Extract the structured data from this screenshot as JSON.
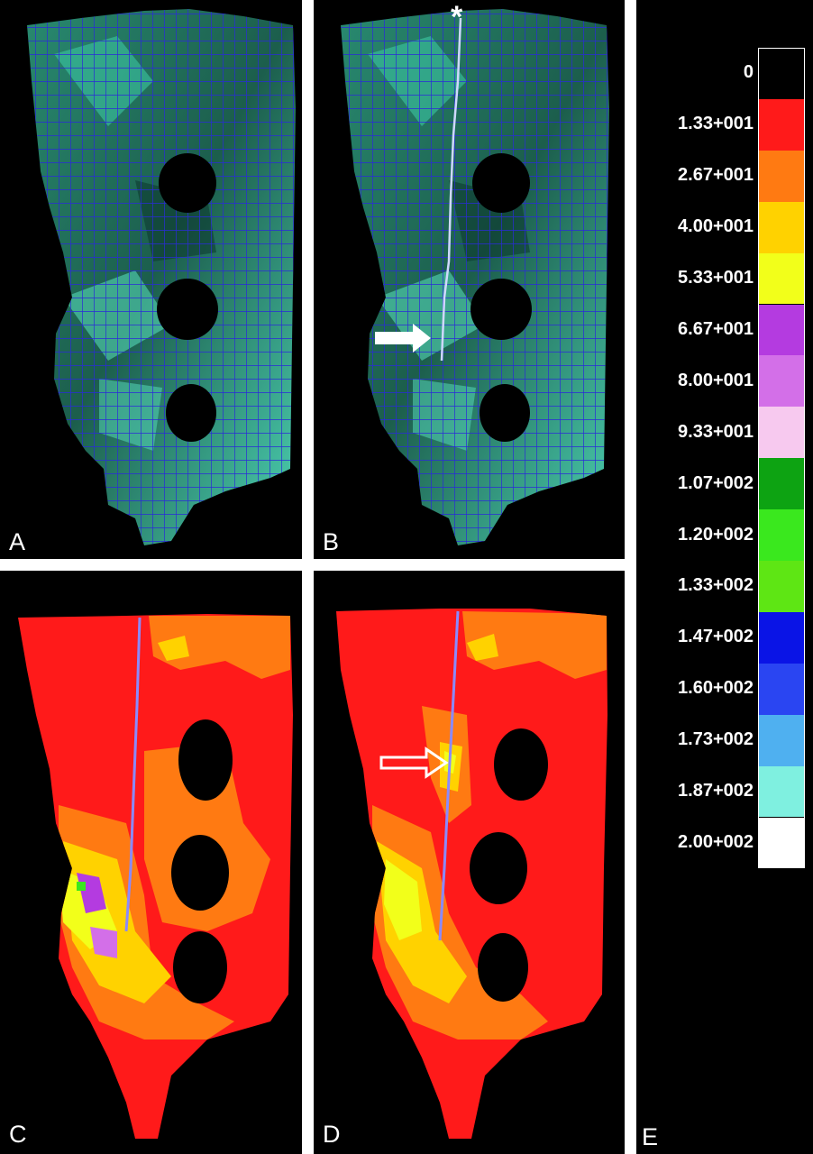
{
  "panels": [
    {
      "label": "A"
    },
    {
      "label": "B"
    },
    {
      "label": "C"
    },
    {
      "label": "D"
    },
    {
      "label": "E"
    }
  ],
  "annotations": {
    "asterisk": "*"
  },
  "legend": {
    "entries": [
      {
        "label": "0",
        "color": "#000000"
      },
      {
        "label": "1.33+001",
        "color": "#ff1a1a"
      },
      {
        "label": "2.67+001",
        "color": "#ff7a12"
      },
      {
        "label": "4.00+001",
        "color": "#ffd200"
      },
      {
        "label": "5.33+001",
        "color": "#f2ff1a"
      },
      {
        "label": "6.67+001",
        "color": "#b43be0"
      },
      {
        "label": "8.00+001",
        "color": "#d36fe8"
      },
      {
        "label": "9.33+001",
        "color": "#f7c9ef"
      },
      {
        "label": "1.07+002",
        "color": "#0da312"
      },
      {
        "label": "1.20+002",
        "color": "#3ae81e"
      },
      {
        "label": "1.33+002",
        "color": "#5ee614"
      },
      {
        "label": "1.47+002",
        "color": "#0a14e6"
      },
      {
        "label": "1.60+002",
        "color": "#2a45f2"
      },
      {
        "label": "1.73+002",
        "color": "#4fb0f0"
      },
      {
        "label": "1.87+002",
        "color": "#7ff0e0"
      },
      {
        "label": "2.00+002",
        "color": "#ffffff"
      }
    ]
  },
  "colors": {
    "mesh_fill": "#1f6f5a",
    "mesh_highlight": "#4fd8b8",
    "mesh_line": "#2a2ad8",
    "stress_base": "#ff1a1a"
  }
}
